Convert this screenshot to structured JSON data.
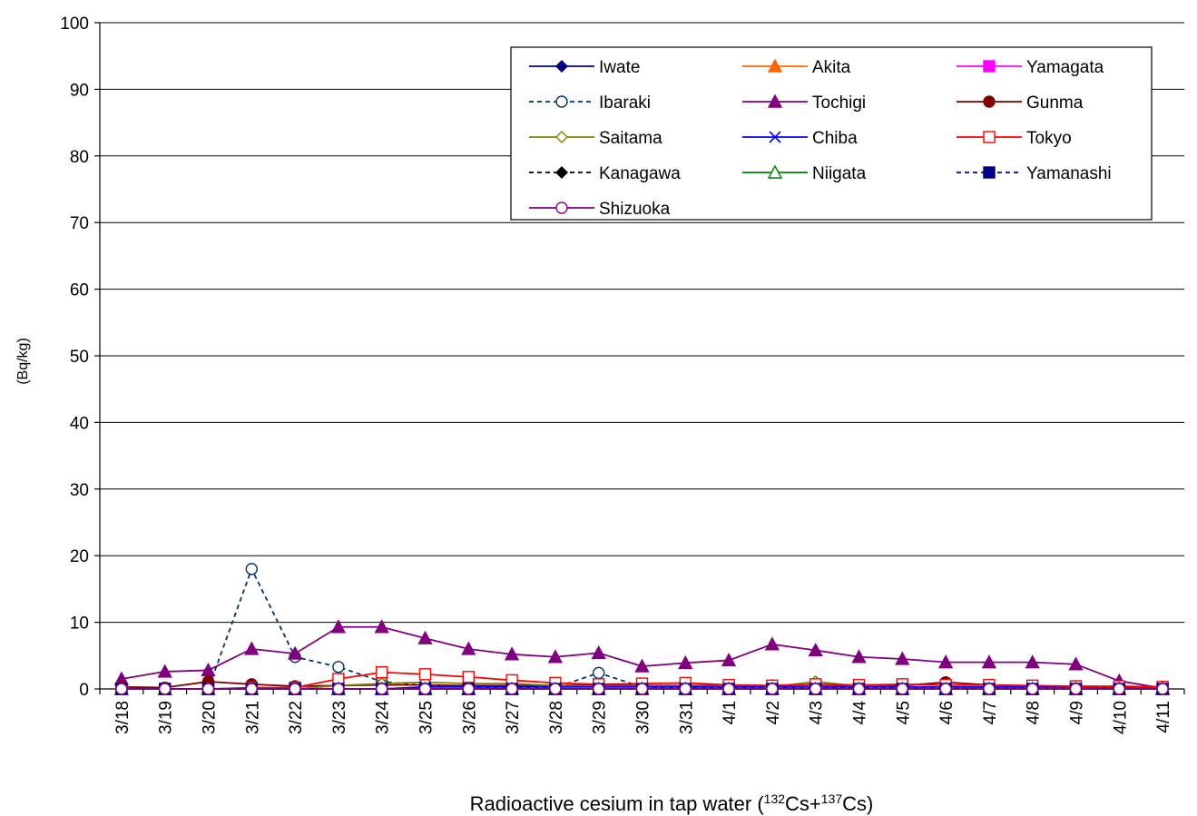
{
  "chart_data": {
    "type": "line",
    "title": "",
    "xlabel": {
      "prefix": "Radioactive cesium in tap water (",
      "iso1": "132",
      "el1": "Cs+",
      "iso2": "137",
      "el2": "Cs)"
    },
    "ylabel": "(Bq/kg)",
    "ylim": [
      0,
      100
    ],
    "yticks": [
      0,
      10,
      20,
      30,
      40,
      50,
      60,
      70,
      80,
      90,
      100
    ],
    "grid": true,
    "legend_position": "top-right",
    "categories": [
      "3/18",
      "3/19",
      "3/20",
      "3/21",
      "3/22",
      "3/23",
      "3/24",
      "3/25",
      "3/26",
      "3/27",
      "3/28",
      "3/29",
      "3/30",
      "3/31",
      "4/1",
      "4/2",
      "4/3",
      "4/4",
      "4/5",
      "4/6",
      "4/7",
      "4/8",
      "4/9",
      "4/10",
      "4/11"
    ],
    "series": [
      {
        "name": "Iwate",
        "color": "#000080",
        "dash": false,
        "marker": "diamond",
        "fill": "filled",
        "values": [
          0,
          0,
          0,
          0,
          0,
          0,
          0,
          0,
          0,
          0,
          0,
          0,
          0,
          0,
          0,
          0,
          0,
          0,
          0,
          0,
          0,
          0,
          0,
          0,
          0
        ]
      },
      {
        "name": "Akita",
        "color": "#FF6600",
        "dash": false,
        "marker": "triangle",
        "fill": "filled",
        "values": [
          0,
          0,
          0,
          0,
          0,
          0,
          0,
          0,
          0,
          0,
          0,
          0,
          0,
          0,
          0,
          0,
          0,
          0,
          0,
          0,
          0,
          0,
          0,
          0,
          0
        ]
      },
      {
        "name": "Yamagata",
        "color": "#FF00FF",
        "dash": false,
        "marker": "square",
        "fill": "filled",
        "values": [
          0,
          0,
          0,
          0,
          0,
          0,
          0,
          0,
          0,
          0,
          0,
          0,
          0,
          0,
          0,
          0,
          0,
          0,
          0,
          0,
          0,
          0,
          0,
          0,
          0
        ]
      },
      {
        "name": "Ibaraki",
        "color": "#003366",
        "dash": true,
        "marker": "circle",
        "fill": "open",
        "values": [
          0,
          0,
          0,
          18,
          4.8,
          3.3,
          1.1,
          0.5,
          0.3,
          0.2,
          0.2,
          2.4,
          0.3,
          0.2,
          0.2,
          0.2,
          0.2,
          0.2,
          0.2,
          0.2,
          0.2,
          0.1,
          0.1,
          0.1,
          0.1
        ]
      },
      {
        "name": "Tochigi",
        "color": "#800080",
        "dash": false,
        "marker": "triangle",
        "fill": "filled",
        "values": [
          1.5,
          2.6,
          2.8,
          6,
          5.3,
          9.3,
          9.3,
          7.6,
          6,
          5.2,
          4.8,
          5.4,
          3.4,
          3.9,
          4.3,
          6.7,
          5.8,
          4.8,
          4.5,
          4,
          4,
          4,
          3.7,
          1.2,
          0.1
        ]
      },
      {
        "name": "Gunma",
        "color": "#800000",
        "dash": false,
        "marker": "circle",
        "fill": "filled",
        "values": [
          0.3,
          0.2,
          1.1,
          0.7,
          0.4,
          0.5,
          0.6,
          0.6,
          0.5,
          0.5,
          0.5,
          0.6,
          0.5,
          0.5,
          0.5,
          0.5,
          0.6,
          0.5,
          0.5,
          1,
          0.6,
          0.4,
          0.4,
          0.3,
          0.3
        ]
      },
      {
        "name": "Saitama",
        "color": "#808000",
        "dash": false,
        "marker": "diamond",
        "fill": "open",
        "values": [
          0,
          0,
          0,
          0,
          0,
          0.5,
          0.8,
          1,
          0.8,
          0.8,
          0.5,
          0.4,
          0.4,
          0.4,
          0.4,
          0.3,
          1.1,
          0.4,
          0.3,
          0.3,
          0.3,
          0.3,
          0.3,
          0.3,
          0.2
        ]
      },
      {
        "name": "Chiba",
        "color": "#0000FF",
        "dash": false,
        "marker": "x",
        "fill": "open",
        "values": [
          0,
          0,
          0,
          0,
          0,
          0,
          0,
          0.3,
          0.3,
          0.3,
          0.3,
          0.3,
          0.3,
          0.3,
          0.3,
          0.3,
          0.3,
          0.3,
          0.3,
          0.3,
          0.3,
          0.3,
          0.3,
          0.3,
          0.3
        ]
      },
      {
        "name": "Tokyo",
        "color": "#FF0000",
        "dash": false,
        "marker": "square",
        "fill": "open",
        "values": [
          0,
          0,
          0,
          0.2,
          0.2,
          1.5,
          2.5,
          2.2,
          1.8,
          1.3,
          0.9,
          0.7,
          0.8,
          0.9,
          0.6,
          0.5,
          0.7,
          0.6,
          0.7,
          0.6,
          0.6,
          0.5,
          0.4,
          0.4,
          0.3
        ]
      },
      {
        "name": "Kanagawa",
        "color": "#000000",
        "dash": true,
        "marker": "diamond",
        "fill": "filled",
        "values": [
          0,
          0,
          0,
          0,
          0,
          0,
          0,
          0,
          0,
          0,
          0,
          0,
          0,
          0,
          0,
          0,
          0,
          0,
          0,
          0,
          0,
          0,
          0,
          0,
          0
        ]
      },
      {
        "name": "Niigata",
        "color": "#008000",
        "dash": false,
        "marker": "triangle",
        "fill": "open",
        "values": [
          0,
          0,
          0,
          0,
          0,
          0,
          0,
          0,
          0,
          0,
          0,
          0,
          0,
          0,
          0,
          0,
          0,
          0,
          0,
          0,
          0,
          0,
          0,
          0,
          0
        ]
      },
      {
        "name": "Yamanashi",
        "color": "#000080",
        "dash": true,
        "marker": "square",
        "fill": "filled",
        "values": [
          0,
          0,
          0,
          0,
          0,
          0,
          0,
          0,
          0,
          0,
          0,
          0,
          0,
          0,
          0,
          0,
          0,
          0,
          0,
          0,
          0,
          0,
          0,
          0,
          0
        ]
      },
      {
        "name": "Shizuoka",
        "color": "#800080",
        "dash": false,
        "marker": "circle",
        "fill": "open",
        "values": [
          0,
          0,
          0,
          0,
          0,
          0,
          0,
          0,
          0,
          0,
          0,
          0,
          0,
          0,
          0,
          0,
          0,
          0,
          0,
          0,
          0,
          0,
          0,
          0,
          0
        ]
      }
    ]
  }
}
